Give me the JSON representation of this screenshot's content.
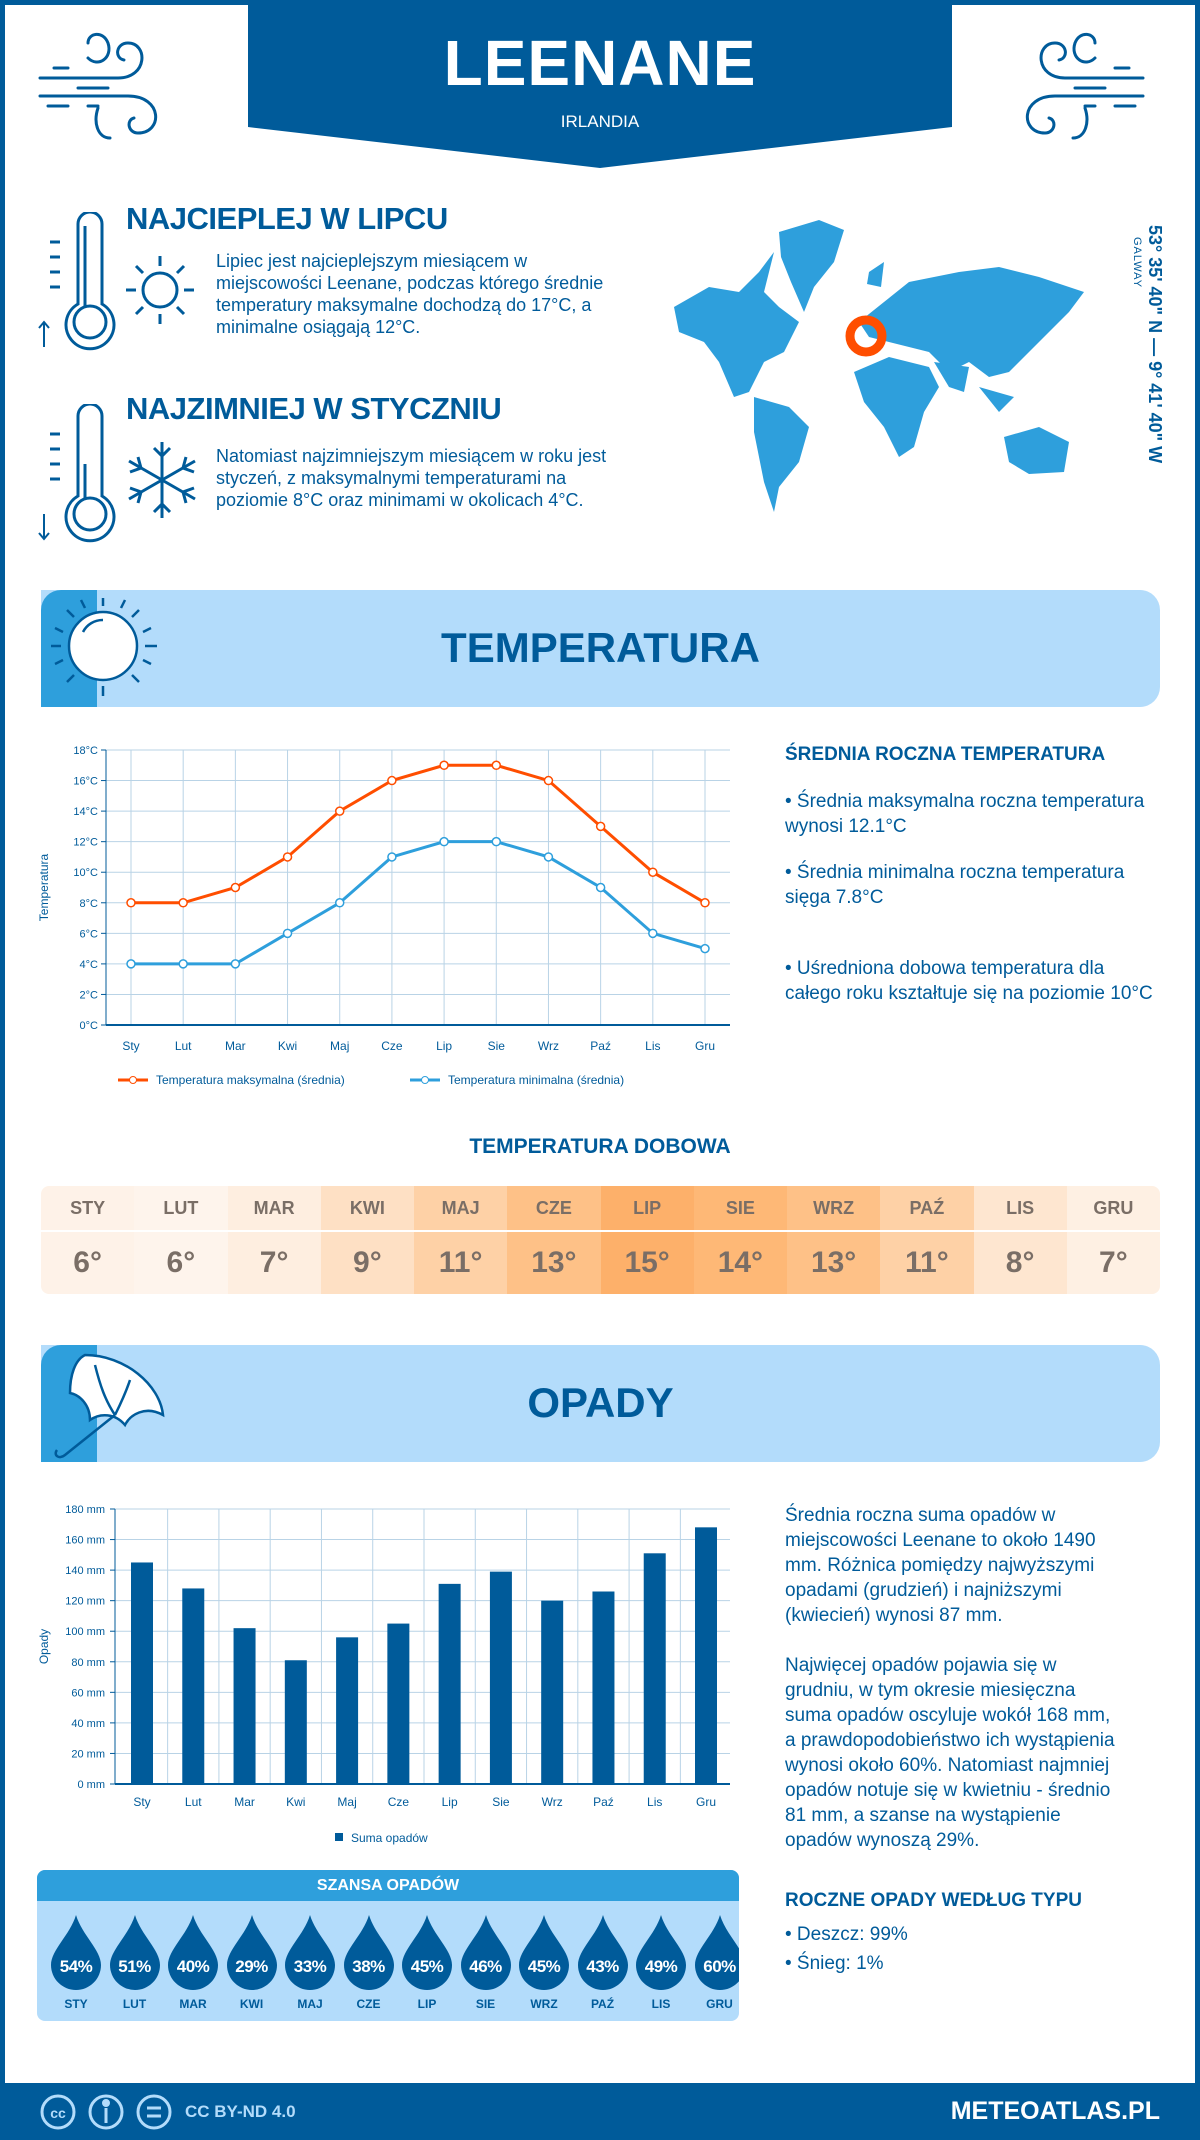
{
  "header": {
    "title": "LEENANE",
    "country": "IRLANDIA"
  },
  "warmest": {
    "title": "NAJCIEPLEJ W LIPCU",
    "text": "Lipiec jest najcieplejszym miesiącem w miejscowości Leenane, podczas którego średnie temperatury maksymalne dochodzą do 17°C, a minimalne osiągają 12°C."
  },
  "coldest": {
    "title": "NAJZIMNIEJ W STYCZNIU",
    "text": "Natomiast najzimniejszym miesiącem w roku jest styczeń, z maksymalnymi temperaturami na poziomie 8°C oraz minimami w okolicach 4°C."
  },
  "map": {
    "coordinates": "53° 35' 40\" N — 9° 41' 40\" W",
    "region": "GALWAY",
    "marker_color": "#ff4e00",
    "land_color": "#2e9fdc"
  },
  "temperature_section": {
    "title": "TEMPERATURA",
    "summary_title": "ŚREDNIA ROCZNA TEMPERATURA",
    "bullets": [
      "• Średnia maksymalna roczna temperatura wynosi 12.1°C",
      "• Średnia minimalna roczna temperatura sięga 7.8°C",
      "• Uśredniona dobowa temperatura dla całego roku kształtuje się na poziomie 10°C"
    ],
    "daily_title": "TEMPERATURA DOBOWA",
    "daily": [
      {
        "month": "STY",
        "value": "6°",
        "color": "#fef2e8"
      },
      {
        "month": "LUT",
        "value": "6°",
        "color": "#fef4ec"
      },
      {
        "month": "MAR",
        "value": "7°",
        "color": "#feeee0"
      },
      {
        "month": "KWI",
        "value": "9°",
        "color": "#fee0c4"
      },
      {
        "month": "MAJ",
        "value": "11°",
        "color": "#fed1a6"
      },
      {
        "month": "CZE",
        "value": "13°",
        "color": "#fec187"
      },
      {
        "month": "LIP",
        "value": "15°",
        "color": "#fdb06a"
      },
      {
        "month": "SIE",
        "value": "14°",
        "color": "#feb876"
      },
      {
        "month": "WRZ",
        "value": "13°",
        "color": "#fec187"
      },
      {
        "month": "PAŹ",
        "value": "11°",
        "color": "#fed1a6"
      },
      {
        "month": "LIS",
        "value": "8°",
        "color": "#fee6d0"
      },
      {
        "month": "GRU",
        "value": "7°",
        "color": "#fef0e3"
      }
    ]
  },
  "precip_section": {
    "title": "OPADY",
    "paragraphs": [
      "Średnia roczna suma opadów w miejscowości Leenane to około 1490 mm. Różnica pomiędzy najwyższymi opadami (grudzień) i najniższymi (kwiecień) wynosi 87 mm.",
      "Najwięcej opadów pojawia się w grudniu, w tym okresie miesięczna suma opadów oscyluje wokół 168 mm, a prawdopodobieństwo ich wystąpienia wynosi około 60%. Natomiast najmniej opadów notuje się w kwietniu - średnio 81 mm, a szanse na wystąpienie opadów wynoszą 29%."
    ],
    "chance_title": "SZANSA OPADÓW",
    "chance": [
      {
        "month": "STY",
        "value": "54%"
      },
      {
        "month": "LUT",
        "value": "51%"
      },
      {
        "month": "MAR",
        "value": "40%"
      },
      {
        "month": "KWI",
        "value": "29%"
      },
      {
        "month": "MAJ",
        "value": "33%"
      },
      {
        "month": "CZE",
        "value": "38%"
      },
      {
        "month": "LIP",
        "value": "45%"
      },
      {
        "month": "SIE",
        "value": "46%"
      },
      {
        "month": "WRZ",
        "value": "45%"
      },
      {
        "month": "PAŹ",
        "value": "43%"
      },
      {
        "month": "LIS",
        "value": "49%"
      },
      {
        "month": "GRU",
        "value": "60%"
      }
    ],
    "type_title": "ROCZNE OPADY WEDŁUG TYPU",
    "types": [
      "• Deszcz: 99%",
      "• Śnieg: 1%"
    ]
  },
  "chart_data": [
    {
      "type": "line",
      "categories": [
        "Sty",
        "Lut",
        "Mar",
        "Kwi",
        "Maj",
        "Cze",
        "Lip",
        "Sie",
        "Wrz",
        "Paź",
        "Lis",
        "Gru"
      ],
      "series": [
        {
          "name": "Temperatura maksymalna (średnia)",
          "values": [
            8,
            8,
            9,
            11,
            14,
            16,
            17,
            17,
            16,
            13,
            10,
            8
          ],
          "color": "#ff4e00"
        },
        {
          "name": "Temperatura minimalna (średnia)",
          "values": [
            4,
            4,
            4,
            6,
            8,
            11,
            12,
            12,
            11,
            9,
            6,
            5
          ],
          "color": "#2e9fdc"
        }
      ],
      "ylabel": "Temperatura",
      "ylim": [
        0,
        18
      ],
      "yticks": [
        "0°C",
        "2°C",
        "4°C",
        "6°C",
        "8°C",
        "10°C",
        "12°C",
        "14°C",
        "16°C",
        "18°C"
      ],
      "grid": true,
      "legend": "bottom"
    },
    {
      "type": "bar",
      "categories": [
        "Sty",
        "Lut",
        "Mar",
        "Kwi",
        "Maj",
        "Cze",
        "Lip",
        "Sie",
        "Wrz",
        "Paź",
        "Lis",
        "Gru"
      ],
      "series": [
        {
          "name": "Suma opadów",
          "values": [
            145,
            128,
            102,
            81,
            96,
            105,
            131,
            139,
            120,
            126,
            151,
            168
          ],
          "color": "#005b9a"
        }
      ],
      "ylabel": "Opady",
      "ylim": [
        0,
        180
      ],
      "yticks": [
        "0 mm",
        "20 mm",
        "40 mm",
        "60 mm",
        "80 mm",
        "100 mm",
        "120 mm",
        "140 mm",
        "160 mm",
        "180 mm"
      ],
      "grid": true,
      "legend": "bottom"
    }
  ],
  "footer": {
    "license": "CC BY-ND 4.0",
    "site": "METEOATLAS.PL"
  }
}
